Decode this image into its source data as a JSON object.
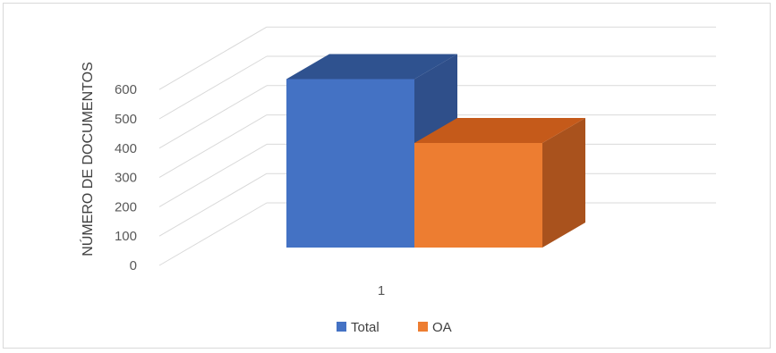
{
  "chart_data": {
    "type": "bar",
    "view": "3d-clustered-column",
    "categories": [
      "1"
    ],
    "series": [
      {
        "name": "Total",
        "values": [
          580
        ],
        "color": "#4472c4",
        "side_color": "#2f4f8a",
        "top_color": "#2f528f"
      },
      {
        "name": "OA",
        "values": [
          360
        ],
        "color": "#ed7d31",
        "side_color": "#a9521d",
        "top_color": "#c55a1a"
      }
    ],
    "ylabel": "NÚMERO DE DOCUMENTOS",
    "yticks": [
      "0",
      "100",
      "200",
      "300",
      "400",
      "500",
      "600"
    ],
    "ylim": [
      0,
      600
    ],
    "grid": true,
    "legend_position": "bottom"
  }
}
